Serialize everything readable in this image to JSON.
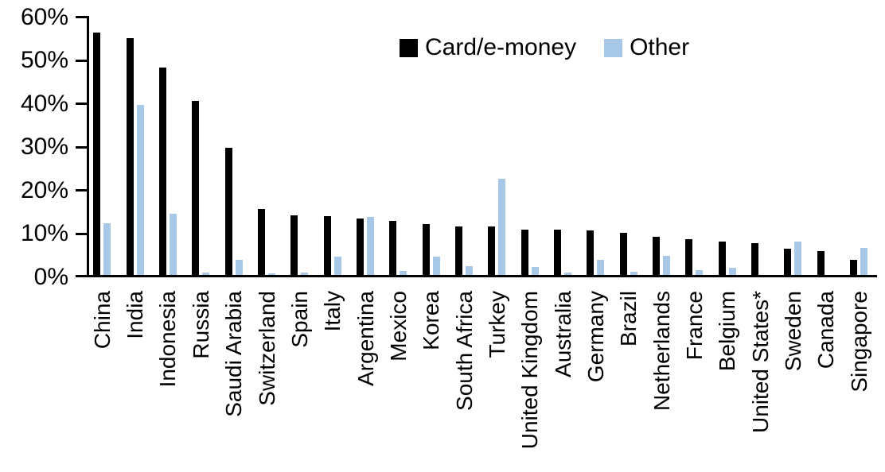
{
  "chart_data": {
    "type": "bar",
    "title": "",
    "xlabel": "",
    "ylabel": "",
    "ylim": [
      0,
      60
    ],
    "ytick_step": 10,
    "ytick_labels": [
      "0%",
      "10%",
      "20%",
      "30%",
      "40%",
      "50%",
      "60%"
    ],
    "grid": false,
    "legend_position": "top-center",
    "categories": [
      "China",
      "India",
      "Indonesia",
      "Russia",
      "Saudi Arabia",
      "Switzerland",
      "Spain",
      "Italy",
      "Argentina",
      "Mexico",
      "Korea",
      "South Africa",
      "Turkey",
      "United Kingdom",
      "Australia",
      "Germany",
      "Brazil",
      "Netherlands",
      "France",
      "Belgium",
      "United States*",
      "Sweden",
      "Canada",
      "Singapore"
    ],
    "series": [
      {
        "name": "Card/e-money",
        "color": "#000000",
        "values": [
          56.5,
          55.2,
          48.4,
          40.6,
          29.9,
          15.7,
          14.2,
          14.1,
          13.4,
          13.0,
          12.2,
          11.7,
          11.6,
          11.0,
          10.9,
          10.7,
          10.1,
          9.3,
          8.7,
          8.1,
          7.8,
          6.5,
          5.9,
          3.9
        ],
        "unit": "%"
      },
      {
        "name": "Other",
        "color": "#A8C8E8",
        "values": [
          12.3,
          39.8,
          14.6,
          1.1,
          3.9,
          0.9,
          1.1,
          4.6,
          13.9,
          1.4,
          4.6,
          2.5,
          22.6,
          2.3,
          1.1,
          4.0,
          1.2,
          4.9,
          1.6,
          2.1,
          0.3,
          8.1,
          0.0,
          6.7
        ],
        "unit": "%"
      }
    ]
  }
}
